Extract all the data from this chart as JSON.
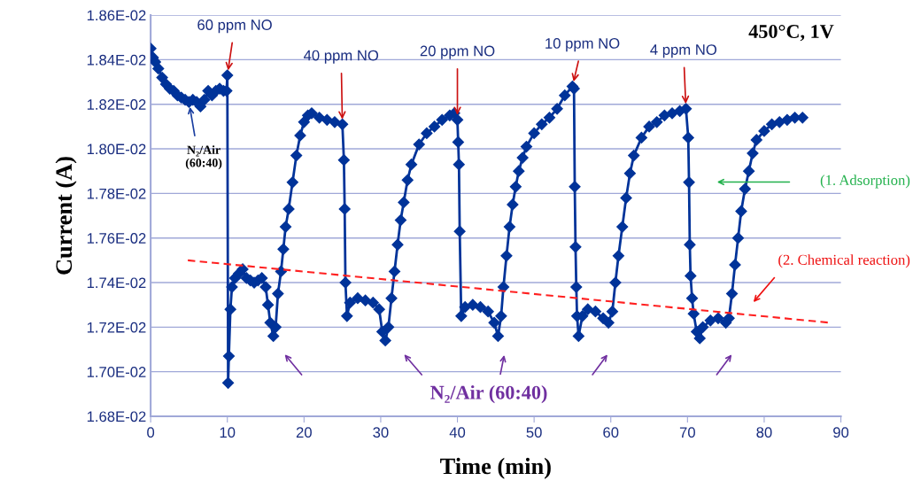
{
  "chart_data": {
    "type": "line",
    "xlabel": "Time (min)",
    "ylabel": "Current (A)",
    "xlim": [
      0,
      90
    ],
    "xticks": [
      0,
      10,
      20,
      30,
      40,
      50,
      60,
      70,
      80,
      90
    ],
    "ylim": [
      0.0168,
      0.0186
    ],
    "yticks": [
      {
        "value": 0.0168,
        "label": "1.68E-02"
      },
      {
        "value": 0.017,
        "label": "1.70E-02"
      },
      {
        "value": 0.0172,
        "label": "1.72E-02"
      },
      {
        "value": 0.0174,
        "label": "1.74E-02"
      },
      {
        "value": 0.0176,
        "label": "1.76E-02"
      },
      {
        "value": 0.0178,
        "label": "1.78E-02"
      },
      {
        "value": 0.018,
        "label": "1.80E-02"
      },
      {
        "value": 0.0182,
        "label": "1.82E-02"
      },
      {
        "value": 0.0184,
        "label": "1.84E-02"
      },
      {
        "value": 0.0186,
        "label": "1.86E-02"
      }
    ],
    "grid": "y",
    "series": [
      {
        "color": "#003399",
        "marker": "diamond",
        "line_style": "solid",
        "x": [
          0,
          0.3,
          0.6,
          1,
          1.5,
          2,
          2.5,
          3,
          3.5,
          4,
          4.5,
          5,
          5.5,
          6,
          6.5,
          7,
          7.5,
          8,
          8.5,
          9,
          9.5,
          9.9,
          10,
          10.1,
          10.2,
          10.4,
          10.6,
          11,
          11.5,
          12,
          12.5,
          13,
          13.5,
          14,
          14.5,
          15,
          15.3,
          15.6,
          16,
          16.3,
          16.6,
          17,
          17.3,
          17.6,
          18,
          18.5,
          19,
          19.5,
          20,
          20.5,
          21,
          22,
          23,
          24,
          25,
          25.2,
          25.3,
          25.4,
          25.6,
          26,
          27,
          28,
          29,
          29.8,
          30.2,
          30.6,
          31,
          31.4,
          31.8,
          32.2,
          32.6,
          33,
          33.5,
          34,
          35,
          36,
          37,
          38,
          39,
          39.6,
          40,
          40.1,
          40.2,
          40.3,
          40.5,
          41,
          42,
          43,
          44,
          44.8,
          45.3,
          45.7,
          46,
          46.4,
          46.8,
          47.2,
          47.6,
          48,
          48.5,
          49,
          50,
          51,
          52,
          53,
          54,
          55,
          55.2,
          55.3,
          55.4,
          55.5,
          55.6,
          55.8,
          56.3,
          57,
          58,
          59,
          59.7,
          60.2,
          60.6,
          61,
          61.5,
          62,
          62.5,
          63,
          64,
          65,
          66,
          67,
          68,
          69,
          69.8,
          70.1,
          70.2,
          70.3,
          70.4,
          70.6,
          70.8,
          71.2,
          71.6,
          72,
          73,
          74,
          75,
          75.4,
          75.8,
          76.2,
          76.6,
          77,
          77.5,
          78,
          78.5,
          79,
          80,
          81,
          82,
          83,
          84,
          85
        ],
        "values": [
          0.01845,
          0.01841,
          0.01839,
          0.01836,
          0.01832,
          0.01829,
          0.01827,
          0.01826,
          0.01824,
          0.01823,
          0.01822,
          0.01821,
          0.01822,
          0.01821,
          0.01819,
          0.01822,
          0.01826,
          0.01824,
          0.01826,
          0.01827,
          0.01826,
          0.01826,
          0.01833,
          0.01695,
          0.01707,
          0.01728,
          0.01738,
          0.01742,
          0.01744,
          0.01746,
          0.01742,
          0.01741,
          0.0174,
          0.01741,
          0.01742,
          0.01738,
          0.0173,
          0.01722,
          0.01716,
          0.0172,
          0.01735,
          0.01745,
          0.01755,
          0.01765,
          0.01773,
          0.01785,
          0.01797,
          0.01806,
          0.01812,
          0.01815,
          0.01816,
          0.01814,
          0.01813,
          0.01812,
          0.01811,
          0.01795,
          0.01773,
          0.0174,
          0.01725,
          0.01731,
          0.01733,
          0.01732,
          0.01731,
          0.01728,
          0.01718,
          0.01714,
          0.0172,
          0.01733,
          0.01745,
          0.01757,
          0.01768,
          0.01776,
          0.01786,
          0.01793,
          0.01802,
          0.01807,
          0.0181,
          0.01813,
          0.01815,
          0.01816,
          0.01813,
          0.01803,
          0.01793,
          0.01763,
          0.01725,
          0.01729,
          0.0173,
          0.01729,
          0.01727,
          0.01722,
          0.01716,
          0.01725,
          0.01738,
          0.01752,
          0.01765,
          0.01775,
          0.01783,
          0.0179,
          0.01796,
          0.01801,
          0.01807,
          0.01811,
          0.01814,
          0.01818,
          0.01824,
          0.01828,
          0.01827,
          0.01783,
          0.01756,
          0.01738,
          0.01725,
          0.01716,
          0.01725,
          0.01728,
          0.01727,
          0.01724,
          0.01722,
          0.01727,
          0.0174,
          0.01752,
          0.01765,
          0.01778,
          0.01789,
          0.01797,
          0.01805,
          0.0181,
          0.01812,
          0.01815,
          0.01816,
          0.01817,
          0.01818,
          0.01805,
          0.01785,
          0.01757,
          0.01743,
          0.01733,
          0.01726,
          0.01718,
          0.01715,
          0.0172,
          0.01723,
          0.01724,
          0.01722,
          0.01724,
          0.01735,
          0.01748,
          0.0176,
          0.01772,
          0.01782,
          0.0179,
          0.01798,
          0.01804,
          0.01808,
          0.01811,
          0.01812,
          0.01813,
          0.01814,
          0.01814
        ]
      },
      {
        "color": "#ff2020",
        "marker": "none",
        "line_style": "dashed",
        "x": [
          4.85,
          88.5
        ],
        "values": [
          0.0175,
          0.01722
        ]
      }
    ],
    "annotations": [
      {
        "text": "60 ppm NO",
        "x": 10,
        "y": 0.01833
      },
      {
        "text": "40 ppm NO",
        "x": 25,
        "y": 0.01811
      },
      {
        "text": "20 ppm NO",
        "x": 40,
        "y": 0.01813
      },
      {
        "text": "10 ppm NO",
        "x": 55,
        "y": 0.01828
      },
      {
        "text": "4 ppm NO",
        "x": 69.8,
        "y": 0.01818
      },
      {
        "text": "N₂/Air\n(60:40)",
        "x": 5,
        "y": 0.01821
      },
      "450°C, 1V",
      "N₂/Air (60:40)",
      "(1. Adsorption)",
      "(2. Chemical reaction)"
    ]
  }
}
